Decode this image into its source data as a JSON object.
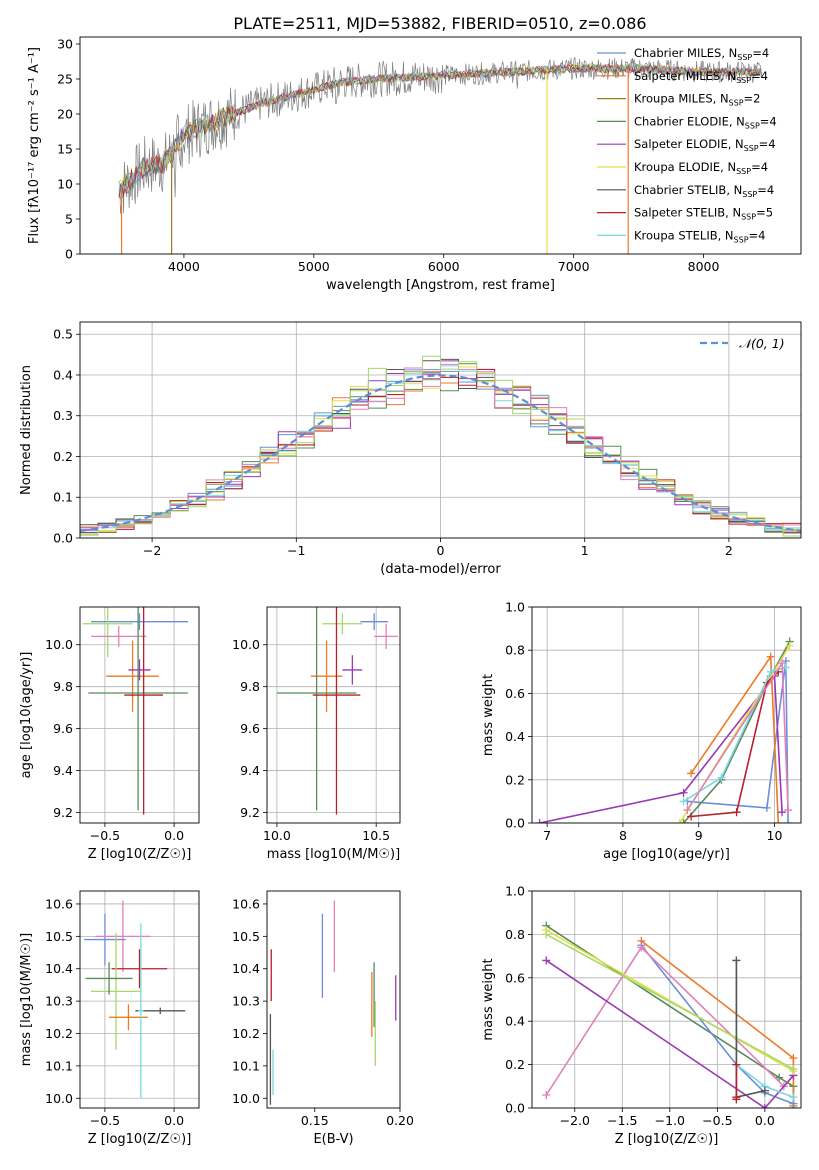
{
  "figure": {
    "title": "PLATE=2511, MJD=53882, FIBERID=0510, z=0.086"
  },
  "chart_data": [
    {
      "type": "line",
      "title": "PLATE=2511, MJD=53882, FIBERID=0510, z=0.086",
      "xlabel": "wavelength [Angstrom, rest frame]",
      "ylabel": "Flux [fλ10⁻¹⁷ erg cm⁻² s⁻¹ A⁻¹]",
      "xlim": [
        3200,
        8750
      ],
      "ylim": [
        0,
        31
      ],
      "xticks": [
        4000,
        5000,
        6000,
        7000,
        8000
      ],
      "yticks": [
        0,
        5,
        10,
        15,
        20,
        25,
        30
      ],
      "grid": false,
      "legend_position": "right",
      "spectrum_points": [
        [
          3500,
          9
        ],
        [
          3700,
          12.5
        ],
        [
          3850,
          13
        ],
        [
          4000,
          17
        ],
        [
          4300,
          19.5
        ],
        [
          4600,
          21.5
        ],
        [
          4900,
          23
        ],
        [
          5200,
          24.5
        ],
        [
          5500,
          25
        ],
        [
          6000,
          25.5
        ],
        [
          6500,
          26
        ],
        [
          7000,
          26.5
        ],
        [
          7500,
          26.5
        ],
        [
          8000,
          26
        ],
        [
          8450,
          26
        ]
      ],
      "series": [
        {
          "name": "Chabrier MILES, NSSP=4",
          "color": "#6a8fd8"
        },
        {
          "name": "Salpeter MILES, NSSP=4",
          "color": "#ed7a27"
        },
        {
          "name": "Kroupa MILES, NSSP=2",
          "color": "#a07a1c"
        },
        {
          "name": "Chabrier ELODIE, NSSP=4",
          "color": "#5a8a5a"
        },
        {
          "name": "Salpeter ELODIE, NSSP=4",
          "color": "#9b38b4"
        },
        {
          "name": "Kroupa ELODIE, NSSP=4",
          "color": "#e0e04a"
        },
        {
          "name": "Chabrier STELIB, NSSP=4",
          "color": "#555555"
        },
        {
          "name": "Salpeter STELIB, NSSP=5",
          "color": "#b8202a"
        },
        {
          "name": "Kroupa STELIB, NSSP=4",
          "color": "#7ad8e0"
        }
      ]
    },
    {
      "type": "line",
      "xlabel": "(data-model)/error",
      "ylabel": "Normed distribution",
      "xlim": [
        -2.5,
        2.5
      ],
      "ylim": [
        0,
        0.53
      ],
      "xticks": [
        -2,
        -1,
        0,
        1,
        2
      ],
      "yticks": [
        0.0,
        0.1,
        0.2,
        0.3,
        0.4,
        0.5
      ],
      "grid": true,
      "legend_position": "top-right",
      "gaussian_label": "𝒩(0, 1)",
      "hist_bin_width": 0.125,
      "hist_colors": [
        "#6a8fd8",
        "#ed7a27",
        "#5a8a5a",
        "#9b38b4",
        "#e0e04a",
        "#555555",
        "#b8202a",
        "#7ad8e0",
        "#e37fb8",
        "#a8d86a"
      ]
    },
    {
      "type": "scatter",
      "xlabel": "Z [log10(Z/Z☉)]",
      "ylabel": "age  [log10(age/yr)]",
      "xlim": [
        -0.68,
        0.18
      ],
      "ylim": [
        9.15,
        10.18
      ],
      "xticks": [
        -0.5,
        0.0
      ],
      "yticks": [
        9.2,
        9.4,
        9.6,
        9.8,
        10.0
      ],
      "grid": true,
      "points": [
        {
          "x": -0.25,
          "y": 10.11,
          "xerr": 0.35,
          "yerr": 0.04,
          "color": "#6a8fd8"
        },
        {
          "x": -0.48,
          "y": 10.1,
          "xerr": 0.18,
          "yerr": 0.16,
          "color": "#a8d86a"
        },
        {
          "x": -0.4,
          "y": 10.04,
          "xerr": 0.2,
          "yerr": 0.05,
          "color": "#e37fb8"
        },
        {
          "x": -0.3,
          "y": 9.85,
          "xerr": 0.19,
          "yerr": 0.17,
          "color": "#ed7a27"
        },
        {
          "x": -0.25,
          "y": 9.88,
          "xerr": 0.08,
          "yerr": 0.05,
          "color": "#9b38b4"
        },
        {
          "x": -0.26,
          "y": 9.77,
          "xerr": 0.36,
          "yerr": 0.56,
          "color": "#5a8a5a"
        },
        {
          "x": -0.22,
          "y": 9.76,
          "xerr": 0.14,
          "yerr": 0.57,
          "color": "#b8202a"
        }
      ]
    },
    {
      "type": "scatter",
      "xlabel": "mass [log10(M/M☉)]",
      "ylabel": "",
      "xlim": [
        9.95,
        10.62
      ],
      "ylim": [
        9.15,
        10.18
      ],
      "xticks": [
        10.0,
        10.5
      ],
      "yticks": [
        9.2,
        9.4,
        9.6,
        9.8,
        10.0
      ],
      "grid": true,
      "points": [
        {
          "x": 10.49,
          "y": 10.11,
          "xerr": 0.07,
          "yerr": 0.04,
          "color": "#6a8fd8"
        },
        {
          "x": 10.55,
          "y": 10.04,
          "xerr": 0.06,
          "yerr": 0.06,
          "color": "#e37fb8"
        },
        {
          "x": 10.33,
          "y": 10.1,
          "xerr": 0.1,
          "yerr": 0.05,
          "color": "#a8d86a"
        },
        {
          "x": 10.38,
          "y": 9.88,
          "xerr": 0.05,
          "yerr": 0.07,
          "color": "#9b38b4"
        },
        {
          "x": 10.25,
          "y": 9.85,
          "xerr": 0.08,
          "yerr": 0.17,
          "color": "#ed7a27"
        },
        {
          "x": 10.2,
          "y": 9.77,
          "xerr": 0.2,
          "yerr": 0.56,
          "color": "#5a8a5a"
        },
        {
          "x": 10.3,
          "y": 9.76,
          "xerr": 0.12,
          "yerr": 0.57,
          "color": "#b8202a"
        }
      ]
    },
    {
      "type": "line",
      "xlabel": "age  [log10(age/yr)]",
      "ylabel": "mass weight",
      "xlim": [
        6.8,
        10.35
      ],
      "ylim": [
        0,
        1.0
      ],
      "xticks": [
        7,
        8,
        9,
        10
      ],
      "yticks": [
        0.0,
        0.2,
        0.4,
        0.6,
        0.8,
        1.0
      ],
      "grid": true,
      "series": [
        {
          "color": "#6a8fd8",
          "x": [
            8.85,
            9.9,
            10.15,
            10.18
          ],
          "y": [
            0.1,
            0.07,
            0.75,
            0.0
          ]
        },
        {
          "color": "#ed7a27",
          "x": [
            8.9,
            9.95,
            10.05
          ],
          "y": [
            0.23,
            0.77,
            0.0
          ]
        },
        {
          "color": "#5a8a5a",
          "x": [
            8.8,
            9.3,
            9.95,
            10.2
          ],
          "y": [
            0.0,
            0.2,
            0.68,
            0.84
          ]
        },
        {
          "color": "#9b38b4",
          "x": [
            6.9,
            8.8,
            10.0,
            10.1
          ],
          "y": [
            0.0,
            0.14,
            0.68,
            0.05
          ]
        },
        {
          "color": "#e0e04a",
          "x": [
            8.75,
            9.9,
            10.2
          ],
          "y": [
            0.0,
            0.65,
            0.82
          ]
        },
        {
          "color": "#b8202a",
          "x": [
            8.9,
            9.5,
            9.9,
            10.05
          ],
          "y": [
            0.03,
            0.05,
            0.65,
            0.7
          ]
        },
        {
          "color": "#7ad8e0",
          "x": [
            8.8,
            9.3,
            9.95,
            10.15
          ],
          "y": [
            0.1,
            0.21,
            0.7,
            0.72
          ]
        },
        {
          "color": "#e37fb8",
          "x": [
            8.85,
            10.1,
            10.18
          ],
          "y": [
            0.06,
            0.74,
            0.06
          ]
        }
      ]
    },
    {
      "type": "scatter",
      "xlabel": "Z [log10(Z/Z☉)]",
      "ylabel": "mass [log10(M/M☉)]",
      "xlim": [
        -0.68,
        0.18
      ],
      "ylim": [
        9.97,
        10.64
      ],
      "xticks": [
        -0.5,
        0.0
      ],
      "yticks": [
        10.0,
        10.1,
        10.2,
        10.3,
        10.4,
        10.5,
        10.6
      ],
      "grid": true,
      "points": [
        {
          "x": -0.5,
          "y": 10.49,
          "xerr": 0.15,
          "yerr": 0.08,
          "color": "#6a8fd8"
        },
        {
          "x": -0.37,
          "y": 10.5,
          "xerr": 0.2,
          "yerr": 0.11,
          "color": "#e37fb8"
        },
        {
          "x": -0.25,
          "y": 10.4,
          "xerr": 0.2,
          "yerr": 0.06,
          "color": "#b8202a"
        },
        {
          "x": -0.42,
          "y": 10.33,
          "xerr": 0.18,
          "yerr": 0.18,
          "color": "#a8d86a"
        },
        {
          "x": -0.47,
          "y": 10.37,
          "xerr": 0.17,
          "yerr": 0.05,
          "color": "#5a8a5a"
        },
        {
          "x": -0.1,
          "y": 10.27,
          "xerr": 0.18,
          "yerr": 0.01,
          "color": "#555555"
        },
        {
          "x": -0.33,
          "y": 10.25,
          "xerr": 0.14,
          "yerr": 0.04,
          "color": "#ed7a27"
        },
        {
          "x": -0.24,
          "y": 10.27,
          "xerr": 0.02,
          "yerr": 0.27,
          "color": "#7ad8e0"
        }
      ]
    },
    {
      "type": "scatter",
      "xlabel": "E(B-V)",
      "ylabel": "",
      "xlim": [
        0.122,
        0.2
      ],
      "ylim": [
        9.97,
        10.64
      ],
      "xticks": [
        0.15,
        0.2
      ],
      "xtick_labels": [
        "0.15",
        "0.20"
      ],
      "yticks": [
        10.0,
        10.1,
        10.2,
        10.3,
        10.4,
        10.5,
        10.6
      ],
      "grid": false,
      "points": [
        {
          "x": 0.1545,
          "y": 10.44,
          "yerr": 0.13,
          "color": "#6a8fd8"
        },
        {
          "x": 0.1615,
          "y": 10.5,
          "yerr": 0.11,
          "color": "#e37fb8"
        },
        {
          "x": 0.1245,
          "y": 10.38,
          "yerr": 0.08,
          "color": "#b8202a"
        },
        {
          "x": 0.1835,
          "y": 10.29,
          "yerr": 0.1,
          "color": "#ed7a27"
        },
        {
          "x": 0.1848,
          "y": 10.32,
          "yerr": 0.1,
          "color": "#5a8a5a"
        },
        {
          "x": 0.1855,
          "y": 10.2,
          "yerr": 0.1,
          "color": "#a8d86a"
        },
        {
          "x": 0.1975,
          "y": 10.31,
          "yerr": 0.07,
          "color": "#9b38b4"
        },
        {
          "x": 0.124,
          "y": 10.12,
          "yerr": 0.14,
          "color": "#555555"
        },
        {
          "x": 0.1255,
          "y": 10.08,
          "yerr": 0.07,
          "color": "#7ad8e0"
        }
      ]
    },
    {
      "type": "line",
      "xlabel": "Z [log10(Z/Z☉)]",
      "ylabel": "mass weight",
      "xlim": [
        -2.45,
        0.38
      ],
      "ylim": [
        0,
        1.0
      ],
      "xticks": [
        -2.0,
        -1.5,
        -1.0,
        -0.5,
        0.0
      ],
      "yticks": [
        0.0,
        0.2,
        0.4,
        0.6,
        0.8,
        1.0
      ],
      "grid": true,
      "series": [
        {
          "color": "#5a8a5a",
          "x": [
            -2.3,
            0.15,
            0.3,
            0.3
          ],
          "y": [
            0.84,
            0.14,
            0.1,
            0.0
          ]
        },
        {
          "color": "#ed7a27",
          "x": [
            -1.3,
            0.3,
            0.3
          ],
          "y": [
            0.77,
            0.23,
            0.01
          ]
        },
        {
          "color": "#6a8fd8",
          "x": [
            -1.3,
            -0.3,
            0.0,
            0.3
          ],
          "y": [
            0.75,
            0.2,
            0.07,
            0.02
          ]
        },
        {
          "color": "#e37fb8",
          "x": [
            -2.3,
            -1.3,
            0.2,
            0.3
          ],
          "y": [
            0.06,
            0.74,
            0.1,
            0.15
          ]
        },
        {
          "color": "#9b38b4",
          "x": [
            -2.3,
            0.0,
            0.3
          ],
          "y": [
            0.68,
            0.0,
            0.15
          ]
        },
        {
          "color": "#e0e04a",
          "x": [
            -2.3,
            0.3
          ],
          "y": [
            0.82,
            0.17
          ]
        },
        {
          "color": "#a8d86a",
          "x": [
            -2.3,
            0.3
          ],
          "y": [
            0.8,
            0.18
          ]
        },
        {
          "color": "#7ad8e0",
          "x": [
            -0.3,
            -0.3,
            0.0,
            0.3
          ],
          "y": [
            0.68,
            0.2,
            0.1,
            0.05
          ]
        },
        {
          "color": "#555555",
          "x": [
            -0.3,
            -0.3,
            0.0
          ],
          "y": [
            0.68,
            0.05,
            0.08
          ]
        },
        {
          "color": "#b8202a",
          "x": [
            -0.3,
            -0.3,
            -0.3
          ],
          "y": [
            0.05,
            0.2,
            0.04
          ]
        }
      ]
    }
  ]
}
